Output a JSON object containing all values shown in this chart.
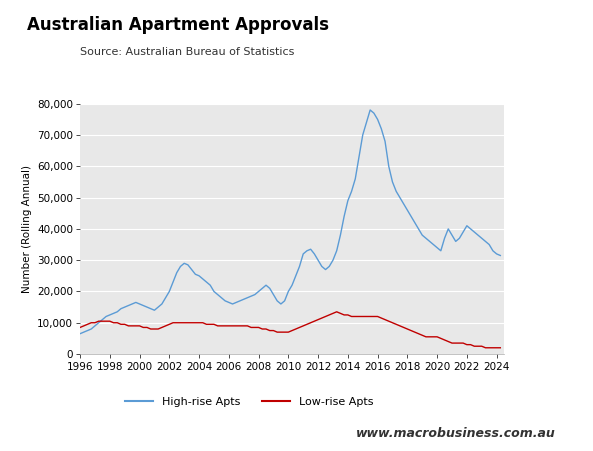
{
  "title": "Australian Apartment Approvals",
  "subtitle": "Source: Australian Bureau of Statistics",
  "ylabel": "Number (Rolling Annual)",
  "website": "www.macrobusiness.com.au",
  "ylim": [
    0,
    80000
  ],
  "yticks": [
    0,
    10000,
    20000,
    30000,
    40000,
    50000,
    60000,
    70000,
    80000
  ],
  "xlim": [
    1996,
    2024.5
  ],
  "xticks": [
    1996,
    1998,
    2000,
    2002,
    2004,
    2006,
    2008,
    2010,
    2012,
    2014,
    2016,
    2018,
    2020,
    2022,
    2024
  ],
  "plot_bg": "#e8e8e8",
  "fig_bg": "#ffffff",
  "high_rise_color": "#5b9bd5",
  "low_rise_color": "#c00000",
  "legend_labels": [
    "High-rise Apts",
    "Low-rise Apts"
  ],
  "macro_box_color": "#cc0000",
  "high_rise_data": {
    "years": [
      1996.0,
      1996.25,
      1996.5,
      1996.75,
      1997.0,
      1997.25,
      1997.5,
      1997.75,
      1998.0,
      1998.25,
      1998.5,
      1998.75,
      1999.0,
      1999.25,
      1999.5,
      1999.75,
      2000.0,
      2000.25,
      2000.5,
      2000.75,
      2001.0,
      2001.25,
      2001.5,
      2001.75,
      2002.0,
      2002.25,
      2002.5,
      2002.75,
      2003.0,
      2003.25,
      2003.5,
      2003.75,
      2004.0,
      2004.25,
      2004.5,
      2004.75,
      2005.0,
      2005.25,
      2005.5,
      2005.75,
      2006.0,
      2006.25,
      2006.5,
      2006.75,
      2007.0,
      2007.25,
      2007.5,
      2007.75,
      2008.0,
      2008.25,
      2008.5,
      2008.75,
      2009.0,
      2009.25,
      2009.5,
      2009.75,
      2010.0,
      2010.25,
      2010.5,
      2010.75,
      2011.0,
      2011.25,
      2011.5,
      2011.75,
      2012.0,
      2012.25,
      2012.5,
      2012.75,
      2013.0,
      2013.25,
      2013.5,
      2013.75,
      2014.0,
      2014.25,
      2014.5,
      2014.75,
      2015.0,
      2015.25,
      2015.5,
      2015.75,
      2016.0,
      2016.25,
      2016.5,
      2016.75,
      2017.0,
      2017.25,
      2017.5,
      2017.75,
      2018.0,
      2018.25,
      2018.5,
      2018.75,
      2019.0,
      2019.25,
      2019.5,
      2019.75,
      2020.0,
      2020.25,
      2020.5,
      2020.75,
      2021.0,
      2021.25,
      2021.5,
      2021.75,
      2022.0,
      2022.25,
      2022.5,
      2022.75,
      2023.0,
      2023.25,
      2023.5,
      2023.75,
      2024.0,
      2024.25
    ],
    "values": [
      6500,
      7000,
      7500,
      8000,
      9000,
      10000,
      11000,
      12000,
      12500,
      13000,
      13500,
      14500,
      15000,
      15500,
      16000,
      16500,
      16000,
      15500,
      15000,
      14500,
      14000,
      15000,
      16000,
      18000,
      20000,
      23000,
      26000,
      28000,
      29000,
      28500,
      27000,
      25500,
      25000,
      24000,
      23000,
      22000,
      20000,
      19000,
      18000,
      17000,
      16500,
      16000,
      16500,
      17000,
      17500,
      18000,
      18500,
      19000,
      20000,
      21000,
      22000,
      21000,
      19000,
      17000,
      16000,
      17000,
      20000,
      22000,
      25000,
      28000,
      32000,
      33000,
      33500,
      32000,
      30000,
      28000,
      27000,
      28000,
      30000,
      33000,
      38000,
      44000,
      49000,
      52000,
      56000,
      63000,
      70000,
      74000,
      78000,
      77000,
      75000,
      72000,
      68000,
      60000,
      55000,
      52000,
      50000,
      48000,
      46000,
      44000,
      42000,
      40000,
      38000,
      37000,
      36000,
      35000,
      34000,
      33000,
      37000,
      40000,
      38000,
      36000,
      37000,
      39000,
      41000,
      40000,
      39000,
      38000,
      37000,
      36000,
      35000,
      33000,
      32000,
      31500
    ]
  },
  "low_rise_data": {
    "years": [
      1996.0,
      1996.25,
      1996.5,
      1996.75,
      1997.0,
      1997.25,
      1997.5,
      1997.75,
      1998.0,
      1998.25,
      1998.5,
      1998.75,
      1999.0,
      1999.25,
      1999.5,
      1999.75,
      2000.0,
      2000.25,
      2000.5,
      2000.75,
      2001.0,
      2001.25,
      2001.5,
      2001.75,
      2002.0,
      2002.25,
      2002.5,
      2002.75,
      2003.0,
      2003.25,
      2003.5,
      2003.75,
      2004.0,
      2004.25,
      2004.5,
      2004.75,
      2005.0,
      2005.25,
      2005.5,
      2005.75,
      2006.0,
      2006.25,
      2006.5,
      2006.75,
      2007.0,
      2007.25,
      2007.5,
      2007.75,
      2008.0,
      2008.25,
      2008.5,
      2008.75,
      2009.0,
      2009.25,
      2009.5,
      2009.75,
      2010.0,
      2010.25,
      2010.5,
      2010.75,
      2011.0,
      2011.25,
      2011.5,
      2011.75,
      2012.0,
      2012.25,
      2012.5,
      2012.75,
      2013.0,
      2013.25,
      2013.5,
      2013.75,
      2014.0,
      2014.25,
      2014.5,
      2014.75,
      2015.0,
      2015.25,
      2015.5,
      2015.75,
      2016.0,
      2016.25,
      2016.5,
      2016.75,
      2017.0,
      2017.25,
      2017.5,
      2017.75,
      2018.0,
      2018.25,
      2018.5,
      2018.75,
      2019.0,
      2019.25,
      2019.5,
      2019.75,
      2020.0,
      2020.25,
      2020.5,
      2020.75,
      2021.0,
      2021.25,
      2021.5,
      2021.75,
      2022.0,
      2022.25,
      2022.5,
      2022.75,
      2023.0,
      2023.25,
      2023.5,
      2023.75,
      2024.0,
      2024.25
    ],
    "values": [
      8500,
      9000,
      9500,
      10000,
      10000,
      10500,
      10500,
      10500,
      10500,
      10000,
      10000,
      9500,
      9500,
      9000,
      9000,
      9000,
      9000,
      8500,
      8500,
      8000,
      8000,
      8000,
      8500,
      9000,
      9500,
      10000,
      10000,
      10000,
      10000,
      10000,
      10000,
      10000,
      10000,
      10000,
      9500,
      9500,
      9500,
      9000,
      9000,
      9000,
      9000,
      9000,
      9000,
      9000,
      9000,
      9000,
      8500,
      8500,
      8500,
      8000,
      8000,
      7500,
      7500,
      7000,
      7000,
      7000,
      7000,
      7500,
      8000,
      8500,
      9000,
      9500,
      10000,
      10500,
      11000,
      11500,
      12000,
      12500,
      13000,
      13500,
      13000,
      12500,
      12500,
      12000,
      12000,
      12000,
      12000,
      12000,
      12000,
      12000,
      12000,
      11500,
      11000,
      10500,
      10000,
      9500,
      9000,
      8500,
      8000,
      7500,
      7000,
      6500,
      6000,
      5500,
      5500,
      5500,
      5500,
      5000,
      4500,
      4000,
      3500,
      3500,
      3500,
      3500,
      3000,
      3000,
      2500,
      2500,
      2500,
      2000,
      2000,
      2000,
      2000,
      2000
    ]
  }
}
